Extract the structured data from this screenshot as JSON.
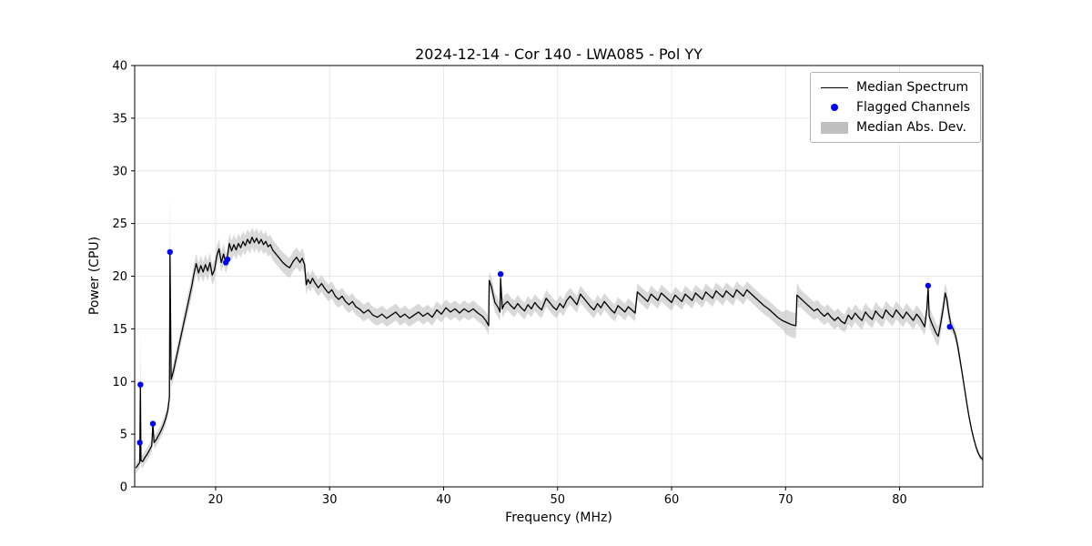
{
  "chart_data": {
    "type": "line",
    "title": "2024-12-14 - Cor 140 - LWA085 - Pol YY",
    "xlabel": "Frequency (MHz)",
    "ylabel": "Power (CPU)",
    "xlim": [
      12.9,
      87.3
    ],
    "ylim": [
      0,
      40
    ],
    "xticks": [
      20,
      30,
      40,
      50,
      60,
      70,
      80
    ],
    "yticks": [
      0,
      5,
      10,
      15,
      20,
      25,
      30,
      35,
      40
    ],
    "grid": true,
    "legend_position": "upper right",
    "series": [
      {
        "name": "Median Spectrum",
        "type": "line",
        "color": "#000000",
        "x": [
          13.0,
          13.2,
          13.35,
          13.4,
          13.45,
          13.6,
          13.8,
          14.0,
          14.2,
          14.4,
          14.5,
          14.6,
          14.8,
          15.0,
          15.2,
          15.4,
          15.6,
          15.8,
          15.95,
          16.0,
          16.1,
          16.3,
          16.5,
          16.7,
          16.9,
          17.1,
          17.3,
          17.5,
          17.7,
          17.9,
          18.1,
          18.3,
          18.5,
          18.7,
          18.9,
          19.1,
          19.3,
          19.5,
          19.7,
          19.9,
          20.1,
          20.3,
          20.5,
          20.7,
          20.9,
          21.0,
          21.2,
          21.4,
          21.6,
          21.8,
          22.0,
          22.2,
          22.4,
          22.6,
          22.8,
          23.0,
          23.2,
          23.4,
          23.6,
          23.8,
          24.0,
          24.2,
          24.4,
          24.6,
          24.8,
          25.0,
          25.3,
          25.6,
          25.9,
          26.2,
          26.5,
          26.8,
          27.1,
          27.4,
          27.6,
          27.8,
          27.95,
          28.1,
          28.3,
          28.5,
          28.7,
          29.0,
          29.3,
          29.6,
          29.9,
          30.2,
          30.5,
          30.8,
          31.1,
          31.4,
          31.7,
          32.0,
          32.3,
          32.6,
          33.0,
          33.4,
          33.8,
          34.2,
          34.6,
          35.0,
          35.4,
          35.8,
          36.2,
          36.6,
          37.0,
          37.4,
          37.8,
          38.2,
          38.6,
          39.0,
          39.4,
          39.8,
          40.2,
          40.6,
          41.0,
          41.4,
          41.8,
          42.2,
          42.6,
          43.0,
          43.4,
          43.7,
          43.95,
          44.0,
          44.2,
          44.5,
          44.8,
          44.95,
          45.0,
          45.15,
          45.3,
          45.6,
          45.9,
          46.2,
          46.5,
          46.8,
          47.1,
          47.4,
          47.7,
          48.0,
          48.3,
          48.6,
          49.0,
          49.3,
          49.6,
          49.9,
          50.2,
          50.5,
          50.8,
          51.1,
          51.4,
          51.7,
          52.0,
          52.3,
          52.6,
          52.9,
          53.2,
          53.5,
          53.8,
          54.1,
          54.4,
          54.7,
          55.0,
          55.3,
          55.6,
          55.9,
          56.2,
          56.5,
          56.8,
          57.0,
          57.3,
          57.6,
          57.9,
          58.2,
          58.5,
          58.8,
          59.1,
          59.4,
          59.7,
          60.0,
          60.3,
          60.6,
          60.9,
          61.2,
          61.5,
          61.8,
          62.1,
          62.4,
          62.7,
          63.0,
          63.3,
          63.6,
          63.9,
          64.2,
          64.5,
          64.8,
          65.1,
          65.4,
          65.7,
          66.0,
          66.3,
          66.6,
          66.9,
          67.2,
          67.5,
          67.8,
          68.1,
          68.5,
          68.9,
          69.3,
          69.7,
          70.1,
          70.5,
          70.9,
          71.0,
          71.3,
          71.6,
          71.9,
          72.2,
          72.5,
          72.8,
          73.1,
          73.4,
          73.7,
          74.0,
          74.3,
          74.6,
          74.9,
          75.2,
          75.5,
          75.8,
          76.1,
          76.4,
          76.7,
          77.0,
          77.3,
          77.6,
          77.9,
          78.2,
          78.5,
          78.8,
          79.1,
          79.4,
          79.7,
          80.0,
          80.3,
          80.6,
          80.9,
          81.2,
          81.5,
          81.8,
          82.0,
          82.2,
          82.4,
          82.5,
          82.6,
          82.8,
          83.0,
          83.2,
          83.4,
          83.6,
          83.8,
          84.0,
          84.15,
          84.3,
          84.5,
          84.7,
          84.9,
          85.1,
          85.3,
          85.5,
          85.7,
          85.9,
          86.1,
          86.3,
          86.5,
          86.7,
          86.9,
          87.1,
          87.3
        ],
        "y": [
          1.8,
          2.1,
          2.3,
          9.7,
          2.5,
          2.4,
          2.8,
          3.1,
          3.5,
          3.9,
          6.0,
          4.2,
          4.5,
          4.9,
          5.3,
          5.8,
          6.4,
          7.2,
          8.5,
          22.3,
          10.2,
          11.0,
          12.0,
          13.0,
          14.0,
          15.0,
          16.0,
          17.0,
          18.0,
          19.0,
          20.2,
          21.2,
          20.3,
          21.0,
          20.4,
          21.1,
          20.5,
          21.3,
          20.1,
          20.6,
          21.9,
          22.6,
          21.3,
          22.1,
          21.2,
          21.6,
          23.1,
          22.4,
          23.0,
          22.5,
          23.1,
          22.7,
          23.3,
          22.9,
          23.5,
          23.1,
          23.7,
          23.2,
          23.6,
          23.1,
          23.5,
          23.0,
          23.3,
          22.8,
          23.0,
          22.5,
          22.1,
          21.7,
          21.3,
          21.0,
          20.8,
          21.4,
          21.8,
          21.3,
          21.7,
          21.1,
          19.2,
          19.7,
          19.3,
          19.8,
          19.4,
          18.9,
          19.3,
          18.8,
          18.4,
          18.7,
          18.1,
          17.8,
          18.1,
          17.6,
          17.3,
          17.6,
          17.1,
          16.9,
          16.5,
          16.8,
          16.3,
          16.1,
          16.4,
          16.0,
          16.3,
          16.6,
          16.1,
          16.4,
          16.0,
          16.3,
          16.6,
          16.2,
          16.5,
          16.1,
          16.8,
          16.4,
          17.0,
          16.6,
          16.9,
          16.5,
          16.9,
          16.6,
          16.9,
          16.5,
          16.2,
          15.8,
          15.3,
          19.6,
          19.0,
          17.5,
          17.0,
          16.6,
          19.8,
          16.9,
          17.3,
          17.6,
          17.2,
          16.9,
          17.4,
          17.0,
          16.7,
          17.3,
          16.9,
          17.5,
          17.1,
          16.8,
          17.9,
          17.5,
          17.1,
          16.8,
          17.4,
          17.0,
          17.7,
          18.1,
          17.7,
          17.3,
          18.3,
          17.9,
          17.5,
          17.1,
          16.8,
          17.4,
          17.0,
          17.6,
          17.2,
          16.8,
          16.5,
          17.2,
          16.9,
          16.6,
          17.1,
          16.8,
          16.5,
          18.5,
          18.2,
          17.9,
          17.6,
          18.3,
          18.0,
          17.7,
          18.4,
          18.1,
          17.8,
          17.5,
          18.2,
          17.9,
          17.6,
          18.3,
          18.0,
          17.7,
          18.4,
          18.1,
          17.8,
          18.5,
          18.2,
          17.9,
          18.6,
          18.3,
          18.0,
          18.6,
          18.3,
          18.0,
          18.7,
          18.4,
          18.1,
          18.7,
          18.4,
          18.1,
          17.8,
          17.5,
          17.2,
          16.9,
          16.5,
          16.1,
          15.8,
          15.6,
          15.4,
          15.3,
          18.2,
          17.9,
          17.6,
          17.3,
          17.0,
          16.7,
          16.9,
          16.5,
          16.2,
          16.5,
          16.1,
          15.8,
          16.1,
          15.7,
          15.5,
          16.3,
          15.9,
          16.5,
          16.1,
          15.8,
          16.6,
          16.2,
          15.9,
          16.7,
          16.3,
          16.0,
          16.8,
          16.4,
          16.1,
          16.8,
          16.4,
          16.0,
          16.6,
          16.2,
          15.8,
          16.4,
          16.0,
          15.6,
          15.2,
          16.9,
          18.9,
          16.2,
          15.6,
          15.1,
          14.6,
          14.3,
          15.5,
          16.8,
          18.4,
          17.8,
          16.6,
          15.4,
          15.0,
          14.4,
          13.4,
          12.1,
          10.7,
          9.3,
          7.9,
          6.6,
          5.5,
          4.6,
          3.8,
          3.2,
          2.8,
          2.6
        ]
      },
      {
        "name": "Median Abs. Dev.",
        "type": "band",
        "color": "#bfbfbf",
        "opacity": 0.6,
        "band_rule": "Median Spectrum y ± half_width; half_width from first matching [xmin,xmax,value] range else default",
        "half_width_default": 0.8,
        "half_width_ranges": [
          [
            12.9,
            13.38,
            0.5
          ],
          [
            13.39,
            13.41,
            5.8
          ],
          [
            13.42,
            15.9,
            0.6
          ],
          [
            15.98,
            16.02,
            5.7
          ],
          [
            16.03,
            17.4,
            0.8
          ],
          [
            17.41,
            28.0,
            0.95
          ],
          [
            28.01,
            43.9,
            0.8
          ],
          [
            43.91,
            45.3,
            0.9
          ],
          [
            45.31,
            69.9,
            0.8
          ],
          [
            69.91,
            71.25,
            1.2
          ],
          [
            71.26,
            82.3,
            0.85
          ],
          [
            82.31,
            84.3,
            0.95
          ],
          [
            84.31,
            85.3,
            0.6
          ],
          [
            85.31,
            87.3,
            0.25
          ]
        ]
      },
      {
        "name": "Flagged Channels",
        "type": "scatter",
        "color": "#0000ff",
        "marker_radius": 3.2,
        "x": [
          13.35,
          13.4,
          14.5,
          16.0,
          20.9,
          21.05,
          45.0,
          82.5,
          84.4
        ],
        "y": [
          4.2,
          9.7,
          6.0,
          22.3,
          21.3,
          21.6,
          20.2,
          19.1,
          15.2
        ]
      }
    ]
  },
  "legend": {
    "median_spectrum": "Median Spectrum",
    "flagged_channels": "Flagged Channels",
    "median_abs_dev": "Median Abs. Dev."
  },
  "colors": {
    "line": "#000000",
    "flagged": "#0000ff",
    "band": "#bfbfbf",
    "grid": "#e6e6e6",
    "axis": "#000000",
    "background": "#ffffff"
  }
}
